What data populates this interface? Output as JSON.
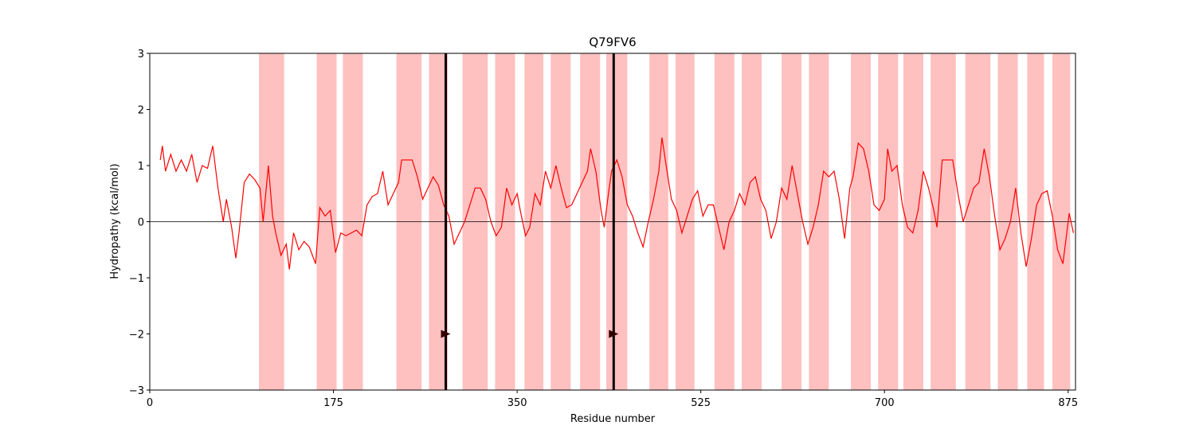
{
  "chart_data": {
    "type": "line",
    "title": "Q79FV6",
    "xlabel": "Residue number",
    "ylabel": "Hydropathy (kcal/mol)",
    "xlim": [
      0,
      882
    ],
    "ylim": [
      -3,
      3
    ],
    "xticks": [
      0,
      175,
      350,
      525,
      700,
      875
    ],
    "yticks": [
      {
        "value": -3,
        "label": "−3"
      },
      {
        "value": -2,
        "label": "−2"
      },
      {
        "value": -1,
        "label": "−1"
      },
      0,
      1,
      2,
      3
    ],
    "hline": 0,
    "color": "#ff0000",
    "region_color": "#ffc0c0",
    "regions": [
      [
        104,
        128
      ],
      [
        159,
        178
      ],
      [
        184,
        203
      ],
      [
        235,
        259
      ],
      [
        266,
        284
      ],
      [
        298,
        322
      ],
      [
        329,
        348
      ],
      [
        357,
        375
      ],
      [
        382,
        401
      ],
      [
        410,
        429
      ],
      [
        435,
        455
      ],
      [
        476,
        494
      ],
      [
        501,
        519
      ],
      [
        538,
        557
      ],
      [
        564,
        583
      ],
      [
        602,
        621
      ],
      [
        628,
        647
      ],
      [
        668,
        687
      ],
      [
        694,
        713
      ],
      [
        718,
        737
      ],
      [
        744,
        768
      ],
      [
        777,
        801
      ],
      [
        808,
        827
      ],
      [
        836,
        852
      ],
      [
        860,
        877
      ]
    ],
    "markers": [
      {
        "x": 282,
        "y": -2
      },
      {
        "x": 442,
        "y": -2
      }
    ],
    "x": [
      10,
      12,
      15,
      20,
      25,
      30,
      35,
      40,
      45,
      50,
      55,
      60,
      65,
      70,
      73,
      78,
      82,
      85,
      90,
      95,
      100,
      105,
      108,
      113,
      117,
      120,
      125,
      130,
      133,
      137,
      142,
      147,
      152,
      158,
      162,
      167,
      172,
      177,
      182,
      187,
      192,
      197,
      202,
      207,
      212,
      217,
      222,
      227,
      232,
      237,
      240,
      245,
      250,
      255,
      260,
      265,
      270,
      275,
      280,
      285,
      290,
      295,
      300,
      305,
      310,
      315,
      320,
      325,
      330,
      335,
      340,
      345,
      350,
      353,
      358,
      362,
      367,
      372,
      377,
      382,
      387,
      392,
      397,
      402,
      407,
      412,
      417,
      420,
      425,
      430,
      433,
      437,
      440,
      445,
      450,
      455,
      460,
      465,
      470,
      475,
      480,
      485,
      488,
      492,
      497,
      502,
      507,
      512,
      517,
      522,
      527,
      532,
      537,
      542,
      547,
      552,
      557,
      562,
      567,
      572,
      577,
      582,
      587,
      592,
      597,
      602,
      607,
      612,
      617,
      622,
      627,
      632,
      637,
      642,
      647,
      652,
      657,
      662,
      667,
      670,
      675,
      680,
      685,
      690,
      695,
      700,
      703,
      707,
      712,
      717,
      722,
      727,
      732,
      737,
      742,
      747,
      750,
      755,
      760,
      765,
      770,
      775,
      780,
      785,
      790,
      795,
      800,
      805,
      810,
      815,
      820,
      825,
      830,
      835,
      840,
      845,
      850,
      855,
      860,
      865,
      870,
      873,
      876,
      880
    ],
    "values": [
      1.1,
      1.35,
      0.9,
      1.2,
      0.9,
      1.1,
      0.9,
      1.2,
      0.7,
      1.0,
      0.95,
      1.35,
      0.6,
      0.0,
      0.4,
      -0.1,
      -0.65,
      -0.2,
      0.7,
      0.85,
      0.75,
      0.6,
      0.0,
      1.0,
      0.1,
      -0.2,
      -0.6,
      -0.4,
      -0.85,
      -0.2,
      -0.5,
      -0.35,
      -0.45,
      -0.75,
      0.25,
      0.1,
      0.2,
      -0.55,
      -0.2,
      -0.25,
      -0.2,
      -0.15,
      -0.25,
      0.3,
      0.45,
      0.5,
      0.9,
      0.3,
      0.5,
      0.7,
      1.1,
      1.1,
      1.1,
      0.8,
      0.4,
      0.6,
      0.8,
      0.65,
      0.3,
      0.1,
      -0.4,
      -0.2,
      0.0,
      0.3,
      0.6,
      0.6,
      0.4,
      0.0,
      -0.25,
      -0.1,
      0.6,
      0.3,
      0.5,
      0.2,
      -0.25,
      -0.1,
      0.5,
      0.3,
      0.9,
      0.6,
      1.0,
      0.6,
      0.25,
      0.3,
      0.5,
      0.7,
      0.9,
      1.3,
      0.9,
      0.2,
      -0.1,
      0.5,
      0.9,
      1.1,
      0.8,
      0.3,
      0.1,
      -0.2,
      -0.45,
      0.0,
      0.4,
      0.9,
      1.5,
      1.0,
      0.4,
      0.2,
      -0.2,
      0.1,
      0.4,
      0.55,
      0.1,
      0.3,
      0.3,
      -0.1,
      -0.5,
      0.0,
      0.2,
      0.5,
      0.3,
      0.7,
      0.8,
      0.4,
      0.2,
      -0.3,
      0.0,
      0.6,
      0.4,
      1.0,
      0.5,
      0.0,
      -0.4,
      -0.1,
      0.3,
      0.9,
      0.8,
      0.9,
      0.4,
      -0.3,
      0.6,
      0.8,
      1.4,
      1.3,
      0.9,
      0.3,
      0.2,
      0.4,
      1.3,
      0.9,
      1.0,
      0.3,
      -0.1,
      -0.2,
      0.2,
      0.9,
      0.6,
      0.2,
      -0.1,
      1.1,
      1.1,
      1.1,
      0.5,
      0.0,
      0.3,
      0.6,
      0.7,
      1.3,
      0.8,
      0.1,
      -0.5,
      -0.3,
      0.0,
      0.6,
      -0.2,
      -0.8,
      -0.3,
      0.3,
      0.5,
      0.55,
      0.1,
      -0.5,
      -0.75,
      -0.3,
      0.15,
      -0.2
    ]
  }
}
